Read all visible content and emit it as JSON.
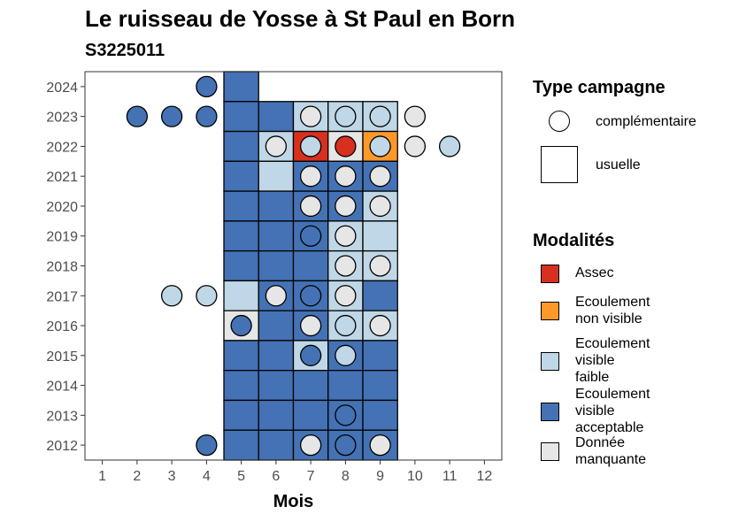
{
  "chart_data": {
    "type": "heatmap",
    "title": "Le ruisseau de Yosse à St Paul en Born",
    "subtitle": "S3225011",
    "xlabel": "Mois",
    "ylabel": "",
    "x_ticks": [
      "1",
      "2",
      "3",
      "4",
      "5",
      "6",
      "7",
      "8",
      "9",
      "10",
      "11",
      "12"
    ],
    "y_ticks": [
      "2012",
      "2013",
      "2014",
      "2015",
      "2016",
      "2017",
      "2018",
      "2019",
      "2020",
      "2021",
      "2022",
      "2023",
      "2024"
    ],
    "xlim": [
      0.5,
      12.5
    ],
    "ylim": [
      2011.5,
      2024.5
    ],
    "legend_type": {
      "title": "Type campagne",
      "items": [
        {
          "key": "complementaire",
          "label": "complémentaire",
          "shape": "circle"
        },
        {
          "key": "usuelle",
          "label": "usuelle",
          "shape": "square"
        }
      ]
    },
    "legend_modalites": {
      "title": "Modalités",
      "items": [
        {
          "key": "assec",
          "label_lines": [
            "Assec"
          ],
          "color": "#d7301f"
        },
        {
          "key": "ecoulement_non_visible",
          "label_lines": [
            "Ecoulement",
            "non visible"
          ],
          "color": "#fe9929"
        },
        {
          "key": "ecoulement_visible_faible",
          "label_lines": [
            "Ecoulement",
            "visible",
            "faible"
          ],
          "color": "#bfd7e6"
        },
        {
          "key": "ecoulement_visible_acceptable",
          "label_lines": [
            "Ecoulement",
            "visible",
            "acceptable"
          ],
          "color": "#4472b4"
        },
        {
          "key": "donnee_manquante",
          "label_lines": [
            "Donnée",
            "manquante"
          ],
          "color": "#e6e6e6"
        }
      ]
    },
    "usuelle": [
      {
        "year": 2024,
        "months": [
          "A"
        ]
      },
      {
        "year": 2023,
        "months": [
          "A",
          "A",
          "F",
          "F",
          "F"
        ]
      },
      {
        "year": 2022,
        "months": [
          "A",
          "F",
          "R",
          "M",
          "O"
        ]
      },
      {
        "year": 2021,
        "months": [
          "A",
          "F",
          "A",
          "A",
          "A"
        ]
      },
      {
        "year": 2020,
        "months": [
          "A",
          "A",
          "A",
          "A",
          "F"
        ]
      },
      {
        "year": 2019,
        "months": [
          "A",
          "A",
          "A",
          "F",
          "F"
        ]
      },
      {
        "year": 2018,
        "months": [
          "A",
          "A",
          "A",
          "F",
          "F"
        ]
      },
      {
        "year": 2017,
        "months": [
          "F",
          "A",
          "A",
          "F",
          "A"
        ]
      },
      {
        "year": 2016,
        "months": [
          "M",
          "A",
          "A",
          "F",
          "F"
        ]
      },
      {
        "year": 2015,
        "months": [
          "A",
          "A",
          "F",
          "A",
          "A"
        ]
      },
      {
        "year": 2014,
        "months": [
          "A",
          "A",
          "A",
          "A",
          "A"
        ]
      },
      {
        "year": 2013,
        "months": [
          "A",
          "A",
          "A",
          "A",
          "A"
        ]
      },
      {
        "year": 2012,
        "months": [
          "A",
          "A",
          "A",
          "A",
          "A"
        ]
      }
    ],
    "usuelle_start_month": 5,
    "complementaire": [
      {
        "year": 2024,
        "month": 4,
        "value": "A"
      },
      {
        "year": 2023,
        "month": 2,
        "value": "A"
      },
      {
        "year": 2023,
        "month": 3,
        "value": "A"
      },
      {
        "year": 2023,
        "month": 4,
        "value": "A"
      },
      {
        "year": 2023,
        "month": 7,
        "value": "M"
      },
      {
        "year": 2023,
        "month": 8,
        "value": "F"
      },
      {
        "year": 2023,
        "month": 9,
        "value": "F"
      },
      {
        "year": 2023,
        "month": 10,
        "value": "M"
      },
      {
        "year": 2022,
        "month": 6,
        "value": "M"
      },
      {
        "year": 2022,
        "month": 7,
        "value": "F"
      },
      {
        "year": 2022,
        "month": 8,
        "value": "R"
      },
      {
        "year": 2022,
        "month": 9,
        "value": "F"
      },
      {
        "year": 2022,
        "month": 10,
        "value": "M"
      },
      {
        "year": 2022,
        "month": 11,
        "value": "F"
      },
      {
        "year": 2021,
        "month": 7,
        "value": "M"
      },
      {
        "year": 2021,
        "month": 8,
        "value": "M"
      },
      {
        "year": 2021,
        "month": 9,
        "value": "M"
      },
      {
        "year": 2020,
        "month": 7,
        "value": "M"
      },
      {
        "year": 2020,
        "month": 8,
        "value": "M"
      },
      {
        "year": 2020,
        "month": 9,
        "value": "M"
      },
      {
        "year": 2019,
        "month": 7,
        "value": "A"
      },
      {
        "year": 2019,
        "month": 8,
        "value": "M"
      },
      {
        "year": 2018,
        "month": 8,
        "value": "M"
      },
      {
        "year": 2018,
        "month": 9,
        "value": "M"
      },
      {
        "year": 2017,
        "month": 3,
        "value": "F"
      },
      {
        "year": 2017,
        "month": 4,
        "value": "F"
      },
      {
        "year": 2017,
        "month": 6,
        "value": "M"
      },
      {
        "year": 2017,
        "month": 7,
        "value": "A"
      },
      {
        "year": 2017,
        "month": 8,
        "value": "M"
      },
      {
        "year": 2016,
        "month": 5,
        "value": "A"
      },
      {
        "year": 2016,
        "month": 7,
        "value": "M"
      },
      {
        "year": 2016,
        "month": 8,
        "value": "F"
      },
      {
        "year": 2016,
        "month": 9,
        "value": "M"
      },
      {
        "year": 2015,
        "month": 7,
        "value": "A"
      },
      {
        "year": 2015,
        "month": 8,
        "value": "F"
      },
      {
        "year": 2013,
        "month": 8,
        "value": "A"
      },
      {
        "year": 2012,
        "month": 4,
        "value": "A"
      },
      {
        "year": 2012,
        "month": 7,
        "value": "M"
      },
      {
        "year": 2012,
        "month": 8,
        "value": "A"
      },
      {
        "year": 2012,
        "month": 9,
        "value": "M"
      }
    ],
    "code_colors": {
      "R": "#d7301f",
      "O": "#fe9929",
      "F": "#bfd7e6",
      "A": "#4472b4",
      "M": "#e6e6e6"
    },
    "grid": false
  }
}
